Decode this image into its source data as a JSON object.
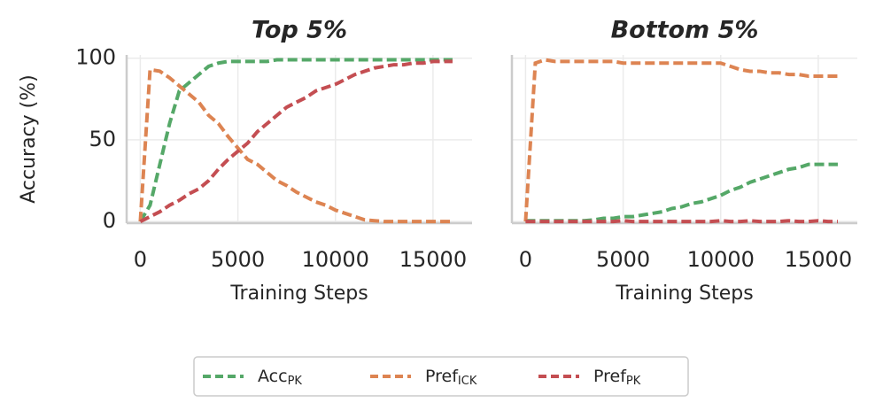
{
  "chart_data": [
    {
      "type": "line",
      "title": "Top 5%",
      "x_label": "Training Steps",
      "y_label": "Accuracy (%)",
      "x": [
        0,
        500,
        1000,
        1500,
        2000,
        2500,
        3000,
        3500,
        4000,
        4500,
        5000,
        5500,
        6000,
        6500,
        7000,
        7500,
        8000,
        8500,
        9000,
        9500,
        10000,
        10500,
        11000,
        11500,
        12000,
        12500,
        13000,
        13500,
        14000,
        14500,
        15000,
        15500,
        16000
      ],
      "xlim": [
        -700,
        17000
      ],
      "xticks": [
        0,
        5000,
        10000,
        15000
      ],
      "ylim": [
        -1,
        102
      ],
      "yticks": [
        0,
        50,
        100
      ],
      "grid": true,
      "series": [
        {
          "name": "Acc",
          "subscript": "PK",
          "color": "#55a868",
          "values": [
            0,
            10,
            35,
            60,
            80,
            85,
            90,
            95,
            97,
            98,
            98,
            98,
            98,
            98,
            99,
            99,
            99,
            99,
            99,
            99,
            99,
            99,
            99,
            99,
            99,
            99,
            99,
            99,
            99,
            99,
            99,
            99,
            99
          ]
        },
        {
          "name": "Pref",
          "subscript": "ICK",
          "color": "#dd8452",
          "values": [
            0,
            93,
            92,
            88,
            83,
            78,
            73,
            65,
            60,
            52,
            45,
            38,
            35,
            30,
            25,
            22,
            18,
            15,
            12,
            10,
            7,
            5,
            3,
            1,
            0.5,
            0,
            0,
            0,
            0,
            0,
            0,
            0,
            0
          ]
        },
        {
          "name": "Pref",
          "subscript": "PK",
          "color": "#c44e52",
          "values": [
            0,
            3,
            6,
            10,
            13,
            17,
            20,
            25,
            32,
            38,
            43,
            48,
            55,
            60,
            65,
            70,
            73,
            76,
            80,
            82,
            84,
            87,
            90,
            92,
            94,
            95,
            96,
            96,
            97,
            97,
            98,
            98,
            98
          ]
        }
      ]
    },
    {
      "type": "line",
      "title": "Bottom 5%",
      "x_label": "Training Steps",
      "x": [
        0,
        500,
        1000,
        1500,
        2000,
        2500,
        3000,
        3500,
        4000,
        4500,
        5000,
        5500,
        6000,
        6500,
        7000,
        7500,
        8000,
        8500,
        9000,
        9500,
        10000,
        10500,
        11000,
        11500,
        12000,
        12500,
        13000,
        13500,
        14000,
        14500,
        15000,
        15500,
        16000
      ],
      "xlim": [
        -700,
        17000
      ],
      "xticks": [
        0,
        5000,
        10000,
        15000
      ],
      "ylim": [
        -1,
        102
      ],
      "yticks": [
        0,
        50,
        100
      ],
      "grid": true,
      "series": [
        {
          "name": "Acc",
          "subscript": "PK",
          "color": "#55a868",
          "values": [
            0.5,
            0.5,
            0.5,
            0.5,
            0.5,
            0.5,
            0.5,
            1,
            2,
            2,
            3,
            3,
            4,
            5,
            6,
            8,
            9,
            11,
            12,
            14,
            16,
            19,
            21,
            24,
            26,
            28,
            30,
            32,
            33,
            35,
            35,
            35,
            35
          ]
        },
        {
          "name": "Pref",
          "subscript": "ICK",
          "color": "#dd8452",
          "values": [
            0,
            97,
            99,
            98,
            98,
            98,
            98,
            98,
            98,
            98,
            97,
            97,
            97,
            97,
            97,
            97,
            97,
            97,
            97,
            97,
            97,
            95,
            93,
            92,
            92,
            91,
            91,
            90,
            90,
            89,
            89,
            89,
            89
          ]
        },
        {
          "name": "Pref",
          "subscript": "PK",
          "color": "#c44e52",
          "values": [
            0,
            0,
            0,
            0,
            0,
            0,
            0,
            0,
            0,
            0,
            0.5,
            0,
            0,
            0,
            0,
            0,
            0,
            0,
            0,
            0,
            0.5,
            0,
            0,
            0.5,
            0,
            0,
            0,
            0.5,
            0,
            0,
            0.5,
            0,
            0
          ]
        }
      ]
    }
  ]
}
